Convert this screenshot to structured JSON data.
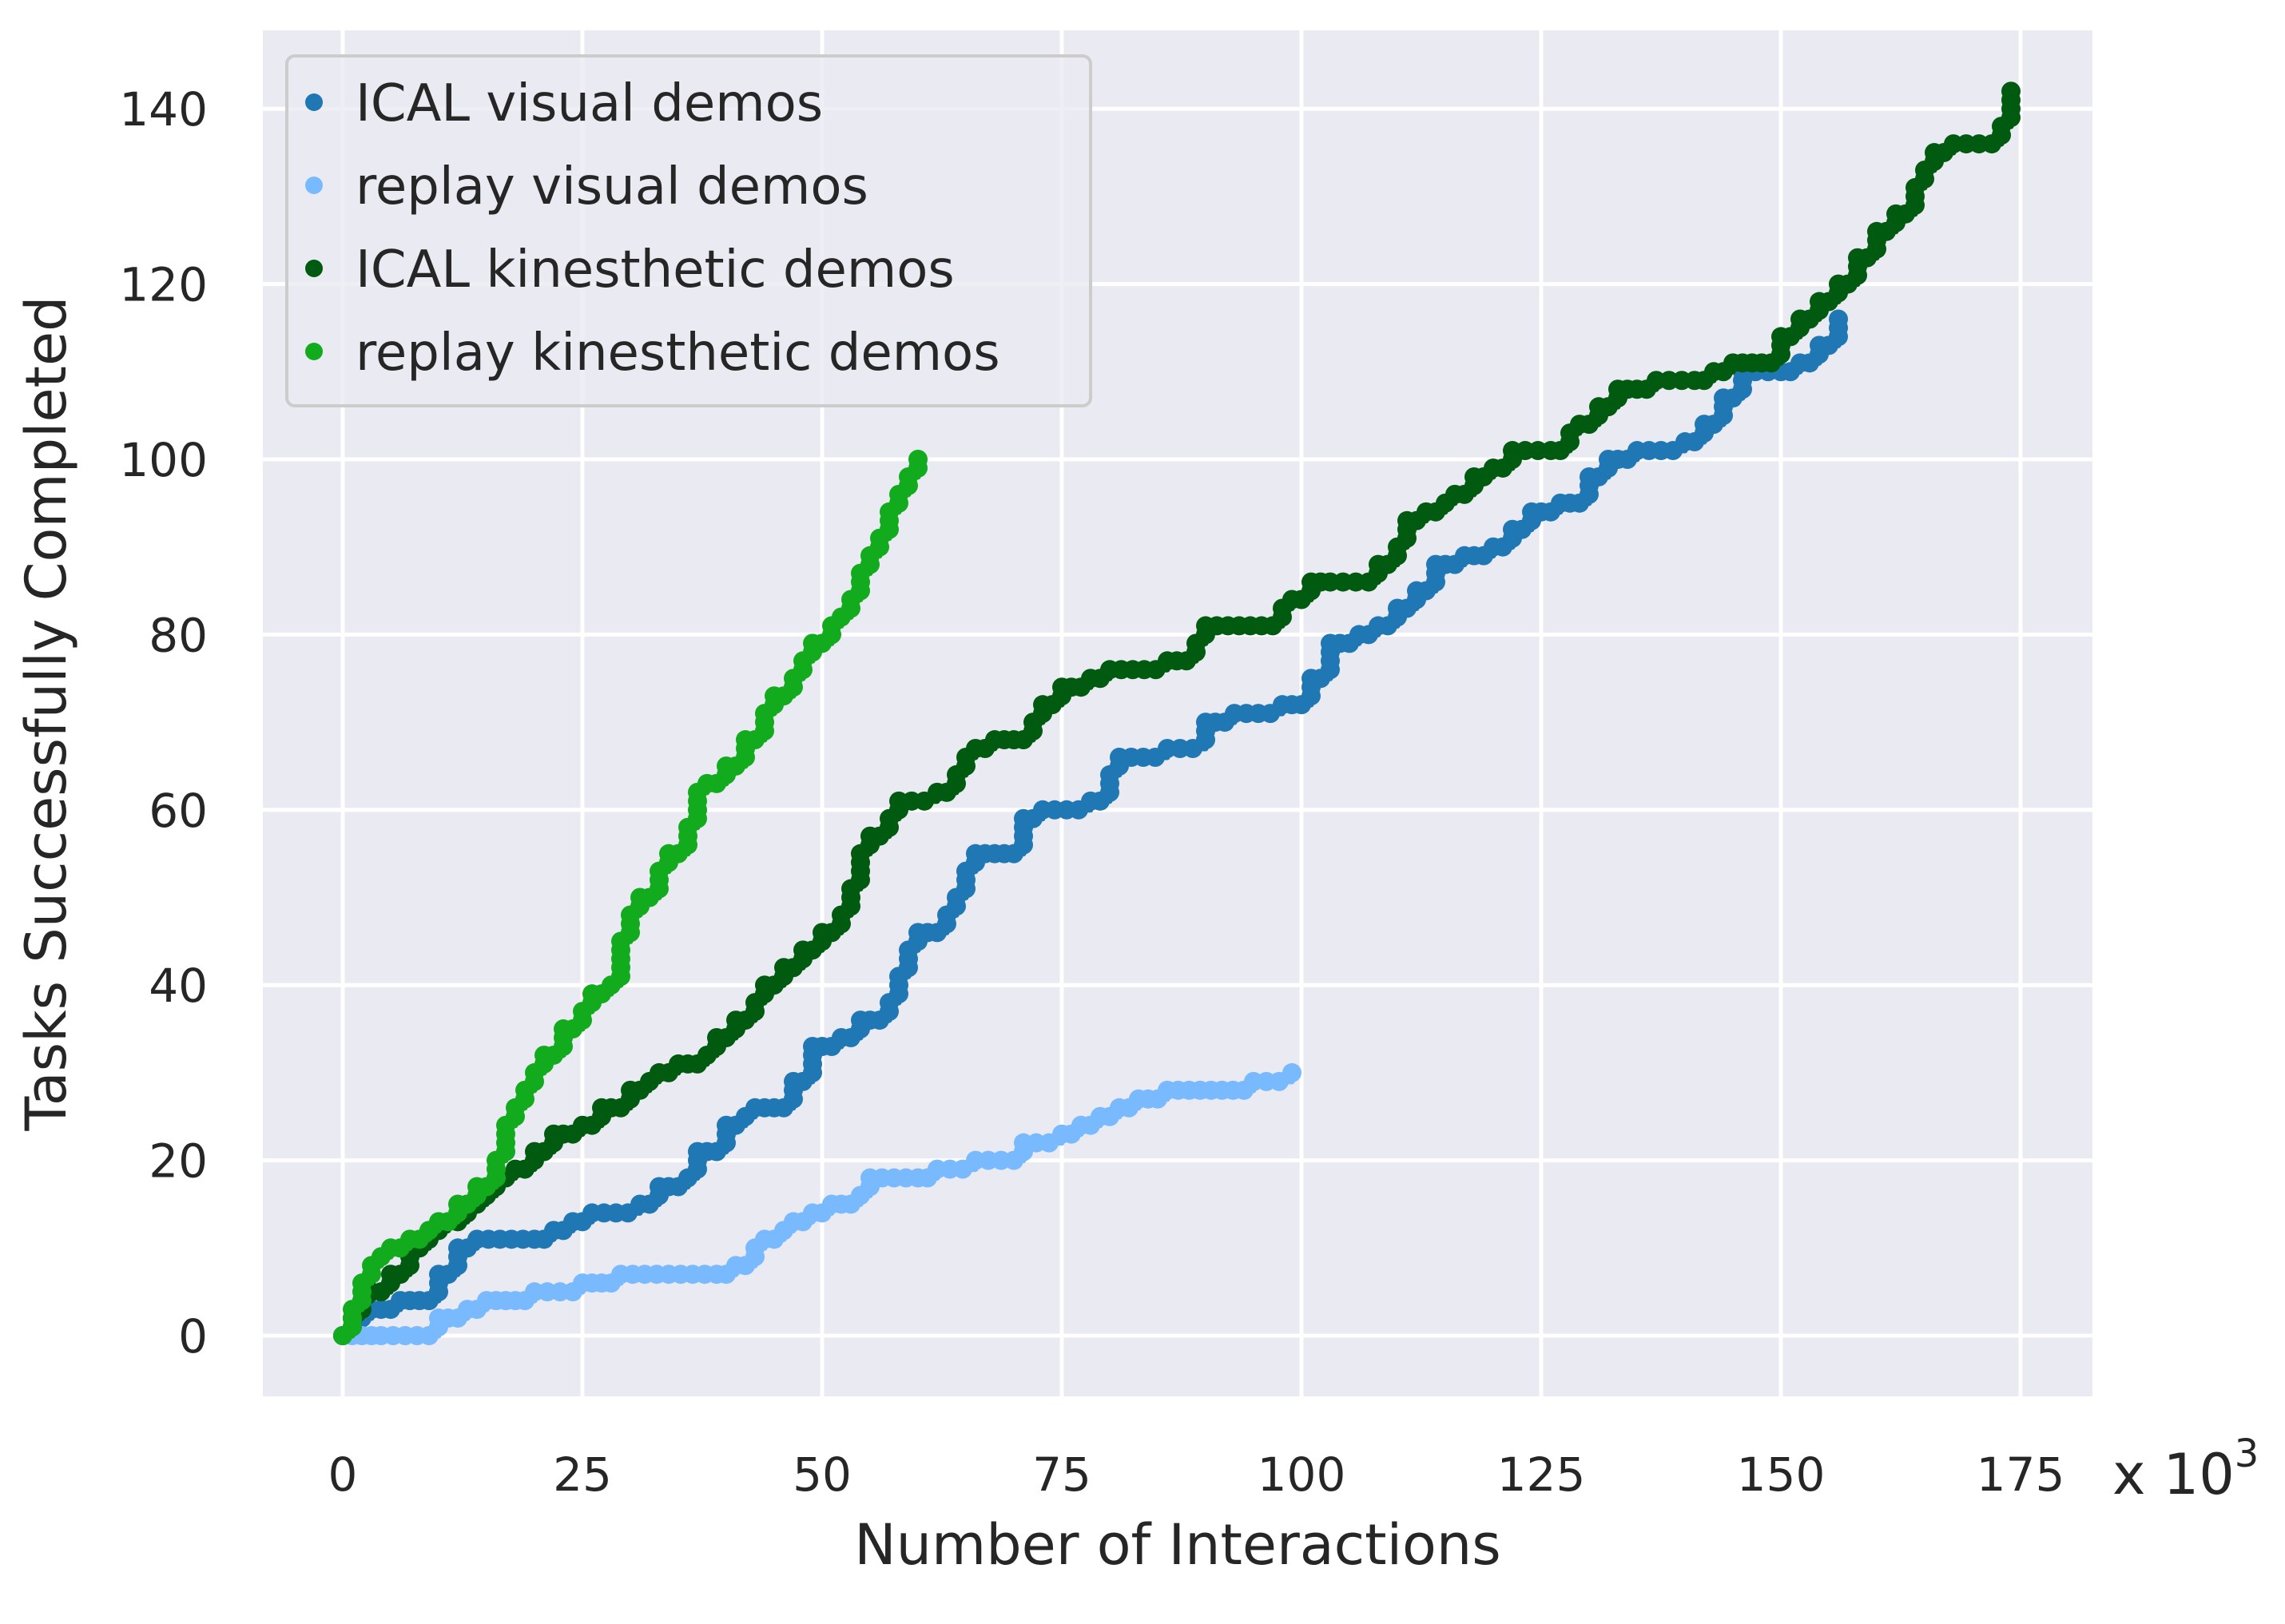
{
  "chart_data": {
    "type": "line",
    "xlabel": "Number of Interactions",
    "ylabel": "Tasks Successfully Completed",
    "x_multiplier_label": "x 10",
    "x_multiplier_exponent": "3",
    "xlim": [
      -8,
      183
    ],
    "ylim": [
      -7,
      149
    ],
    "xticks": [
      0,
      25,
      50,
      75,
      100,
      125,
      150,
      175
    ],
    "yticks": [
      0,
      20,
      40,
      60,
      80,
      100,
      120,
      140
    ],
    "grid": true,
    "legend_position": "upper-left",
    "series": [
      {
        "name": "ICAL visual demos",
        "color": "#1f77b4",
        "points": [
          [
            0,
            0
          ],
          [
            1,
            1
          ],
          [
            2,
            2
          ],
          [
            3,
            3
          ],
          [
            5,
            3
          ],
          [
            6,
            4
          ],
          [
            9,
            4
          ],
          [
            10,
            7
          ],
          [
            12,
            10
          ],
          [
            14,
            11
          ],
          [
            20,
            11
          ],
          [
            22,
            12
          ],
          [
            24,
            13
          ],
          [
            26,
            14
          ],
          [
            31,
            15
          ],
          [
            33,
            17
          ],
          [
            36,
            18
          ],
          [
            37,
            21
          ],
          [
            40,
            24
          ],
          [
            42,
            25
          ],
          [
            43,
            26
          ],
          [
            46,
            26
          ],
          [
            47,
            29
          ],
          [
            49,
            33
          ],
          [
            52,
            34
          ],
          [
            54,
            36
          ],
          [
            57,
            38
          ],
          [
            58,
            41
          ],
          [
            59,
            44
          ],
          [
            60,
            46
          ],
          [
            63,
            48
          ],
          [
            64,
            50
          ],
          [
            65,
            53
          ],
          [
            66,
            55
          ],
          [
            69,
            55
          ],
          [
            71,
            59
          ],
          [
            73,
            60
          ],
          [
            78,
            61
          ],
          [
            80,
            64
          ],
          [
            81,
            66
          ],
          [
            86,
            67
          ],
          [
            90,
            70
          ],
          [
            93,
            71
          ],
          [
            98,
            72
          ],
          [
            100,
            72
          ],
          [
            101,
            75
          ],
          [
            103,
            79
          ],
          [
            106,
            80
          ],
          [
            108,
            81
          ],
          [
            110,
            83
          ],
          [
            112,
            85
          ],
          [
            114,
            88
          ],
          [
            117,
            89
          ],
          [
            120,
            90
          ],
          [
            122,
            92
          ],
          [
            124,
            94
          ],
          [
            127,
            95
          ],
          [
            130,
            98
          ],
          [
            132,
            100
          ],
          [
            135,
            101
          ],
          [
            140,
            102
          ],
          [
            142,
            104
          ],
          [
            144,
            107
          ],
          [
            146,
            110
          ],
          [
            150,
            110
          ],
          [
            152,
            111
          ],
          [
            154,
            113
          ],
          [
            156,
            114
          ],
          [
            156,
            116
          ]
        ]
      },
      {
        "name": "replay visual demos",
        "color": "#79baff",
        "points": [
          [
            0,
            0
          ],
          [
            2,
            0
          ],
          [
            4,
            0
          ],
          [
            9,
            0
          ],
          [
            10,
            2
          ],
          [
            13,
            3
          ],
          [
            15,
            4
          ],
          [
            18,
            4
          ],
          [
            20,
            5
          ],
          [
            24,
            5
          ],
          [
            25,
            6
          ],
          [
            28,
            6
          ],
          [
            29,
            7
          ],
          [
            39,
            7
          ],
          [
            41,
            8
          ],
          [
            43,
            10
          ],
          [
            44,
            11
          ],
          [
            46,
            12
          ],
          [
            47,
            13
          ],
          [
            49,
            14
          ],
          [
            51,
            15
          ],
          [
            54,
            16
          ],
          [
            55,
            18
          ],
          [
            60,
            18
          ],
          [
            62,
            19
          ],
          [
            66,
            20
          ],
          [
            70,
            20
          ],
          [
            71,
            22
          ],
          [
            75,
            23
          ],
          [
            77,
            24
          ],
          [
            79,
            25
          ],
          [
            81,
            26
          ],
          [
            83,
            27
          ],
          [
            86,
            28
          ],
          [
            94,
            28
          ],
          [
            95,
            29
          ],
          [
            99,
            30
          ]
        ]
      },
      {
        "name": "ICAL kinesthetic demos",
        "color": "#005a0f",
        "points": [
          [
            0,
            0
          ],
          [
            1,
            2
          ],
          [
            2,
            4
          ],
          [
            3,
            5
          ],
          [
            5,
            7
          ],
          [
            7,
            10
          ],
          [
            9,
            12
          ],
          [
            11,
            13
          ],
          [
            13,
            15
          ],
          [
            15,
            16
          ],
          [
            16,
            18
          ],
          [
            18,
            19
          ],
          [
            20,
            21
          ],
          [
            22,
            23
          ],
          [
            25,
            24
          ],
          [
            27,
            26
          ],
          [
            30,
            28
          ],
          [
            32,
            29
          ],
          [
            33,
            30
          ],
          [
            35,
            31
          ],
          [
            38,
            32
          ],
          [
            39,
            34
          ],
          [
            41,
            36
          ],
          [
            43,
            38
          ],
          [
            44,
            40
          ],
          [
            46,
            42
          ],
          [
            48,
            44
          ],
          [
            50,
            46
          ],
          [
            52,
            48
          ],
          [
            53,
            51
          ],
          [
            54,
            55
          ],
          [
            55,
            57
          ],
          [
            57,
            59
          ],
          [
            58,
            61
          ],
          [
            62,
            62
          ],
          [
            64,
            64
          ],
          [
            65,
            66
          ],
          [
            66,
            67
          ],
          [
            68,
            68
          ],
          [
            70,
            68
          ],
          [
            72,
            70
          ],
          [
            73,
            72
          ],
          [
            75,
            74
          ],
          [
            78,
            75
          ],
          [
            80,
            76
          ],
          [
            86,
            77
          ],
          [
            89,
            79
          ],
          [
            90,
            81
          ],
          [
            97,
            81
          ],
          [
            98,
            83
          ],
          [
            99,
            84
          ],
          [
            100,
            84
          ],
          [
            101,
            86
          ],
          [
            103,
            86
          ],
          [
            107,
            86
          ],
          [
            108,
            88
          ],
          [
            110,
            90
          ],
          [
            111,
            93
          ],
          [
            113,
            94
          ],
          [
            115,
            95
          ],
          [
            116,
            96
          ],
          [
            118,
            98
          ],
          [
            120,
            99
          ],
          [
            122,
            101
          ],
          [
            126,
            101
          ],
          [
            128,
            103
          ],
          [
            129,
            104
          ],
          [
            131,
            106
          ],
          [
            133,
            108
          ],
          [
            135,
            108
          ],
          [
            137,
            109
          ],
          [
            141,
            109
          ],
          [
            143,
            110
          ],
          [
            145,
            111
          ],
          [
            148,
            111
          ],
          [
            150,
            114
          ],
          [
            152,
            116
          ],
          [
            154,
            118
          ],
          [
            156,
            120
          ],
          [
            158,
            123
          ],
          [
            160,
            126
          ],
          [
            162,
            128
          ],
          [
            164,
            131
          ],
          [
            165,
            133
          ],
          [
            166,
            135
          ],
          [
            168,
            136
          ],
          [
            172,
            136
          ],
          [
            173,
            138
          ],
          [
            174,
            142
          ]
        ]
      },
      {
        "name": "replay kinesthetic demos",
        "color": "#13ab1e",
        "points": [
          [
            0,
            0
          ],
          [
            1,
            3
          ],
          [
            2,
            6
          ],
          [
            3,
            8
          ],
          [
            4,
            9
          ],
          [
            5,
            10
          ],
          [
            7,
            11
          ],
          [
            9,
            12
          ],
          [
            10,
            13
          ],
          [
            12,
            15
          ],
          [
            14,
            17
          ],
          [
            16,
            20
          ],
          [
            17,
            24
          ],
          [
            18,
            26
          ],
          [
            19,
            28
          ],
          [
            20,
            30
          ],
          [
            21,
            32
          ],
          [
            23,
            35
          ],
          [
            25,
            37
          ],
          [
            26,
            39
          ],
          [
            28,
            40
          ],
          [
            29,
            45
          ],
          [
            30,
            48
          ],
          [
            31,
            50
          ],
          [
            33,
            53
          ],
          [
            34,
            55
          ],
          [
            36,
            58
          ],
          [
            37,
            62
          ],
          [
            38,
            63
          ],
          [
            40,
            65
          ],
          [
            42,
            68
          ],
          [
            44,
            71
          ],
          [
            45,
            73
          ],
          [
            47,
            75
          ],
          [
            48,
            77
          ],
          [
            49,
            79
          ],
          [
            51,
            81
          ],
          [
            52,
            82
          ],
          [
            53,
            84
          ],
          [
            54,
            87
          ],
          [
            55,
            89
          ],
          [
            56,
            91
          ],
          [
            57,
            94
          ],
          [
            58,
            96
          ],
          [
            59,
            98
          ],
          [
            60,
            100
          ]
        ]
      }
    ]
  }
}
